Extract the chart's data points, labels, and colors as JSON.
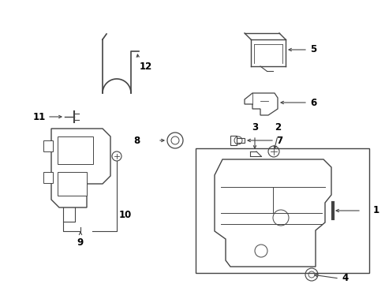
{
  "bg_color": "#ffffff",
  "line_color": "#444444",
  "text_color": "#000000",
  "fig_w": 4.89,
  "fig_h": 3.6,
  "dpi": 100
}
